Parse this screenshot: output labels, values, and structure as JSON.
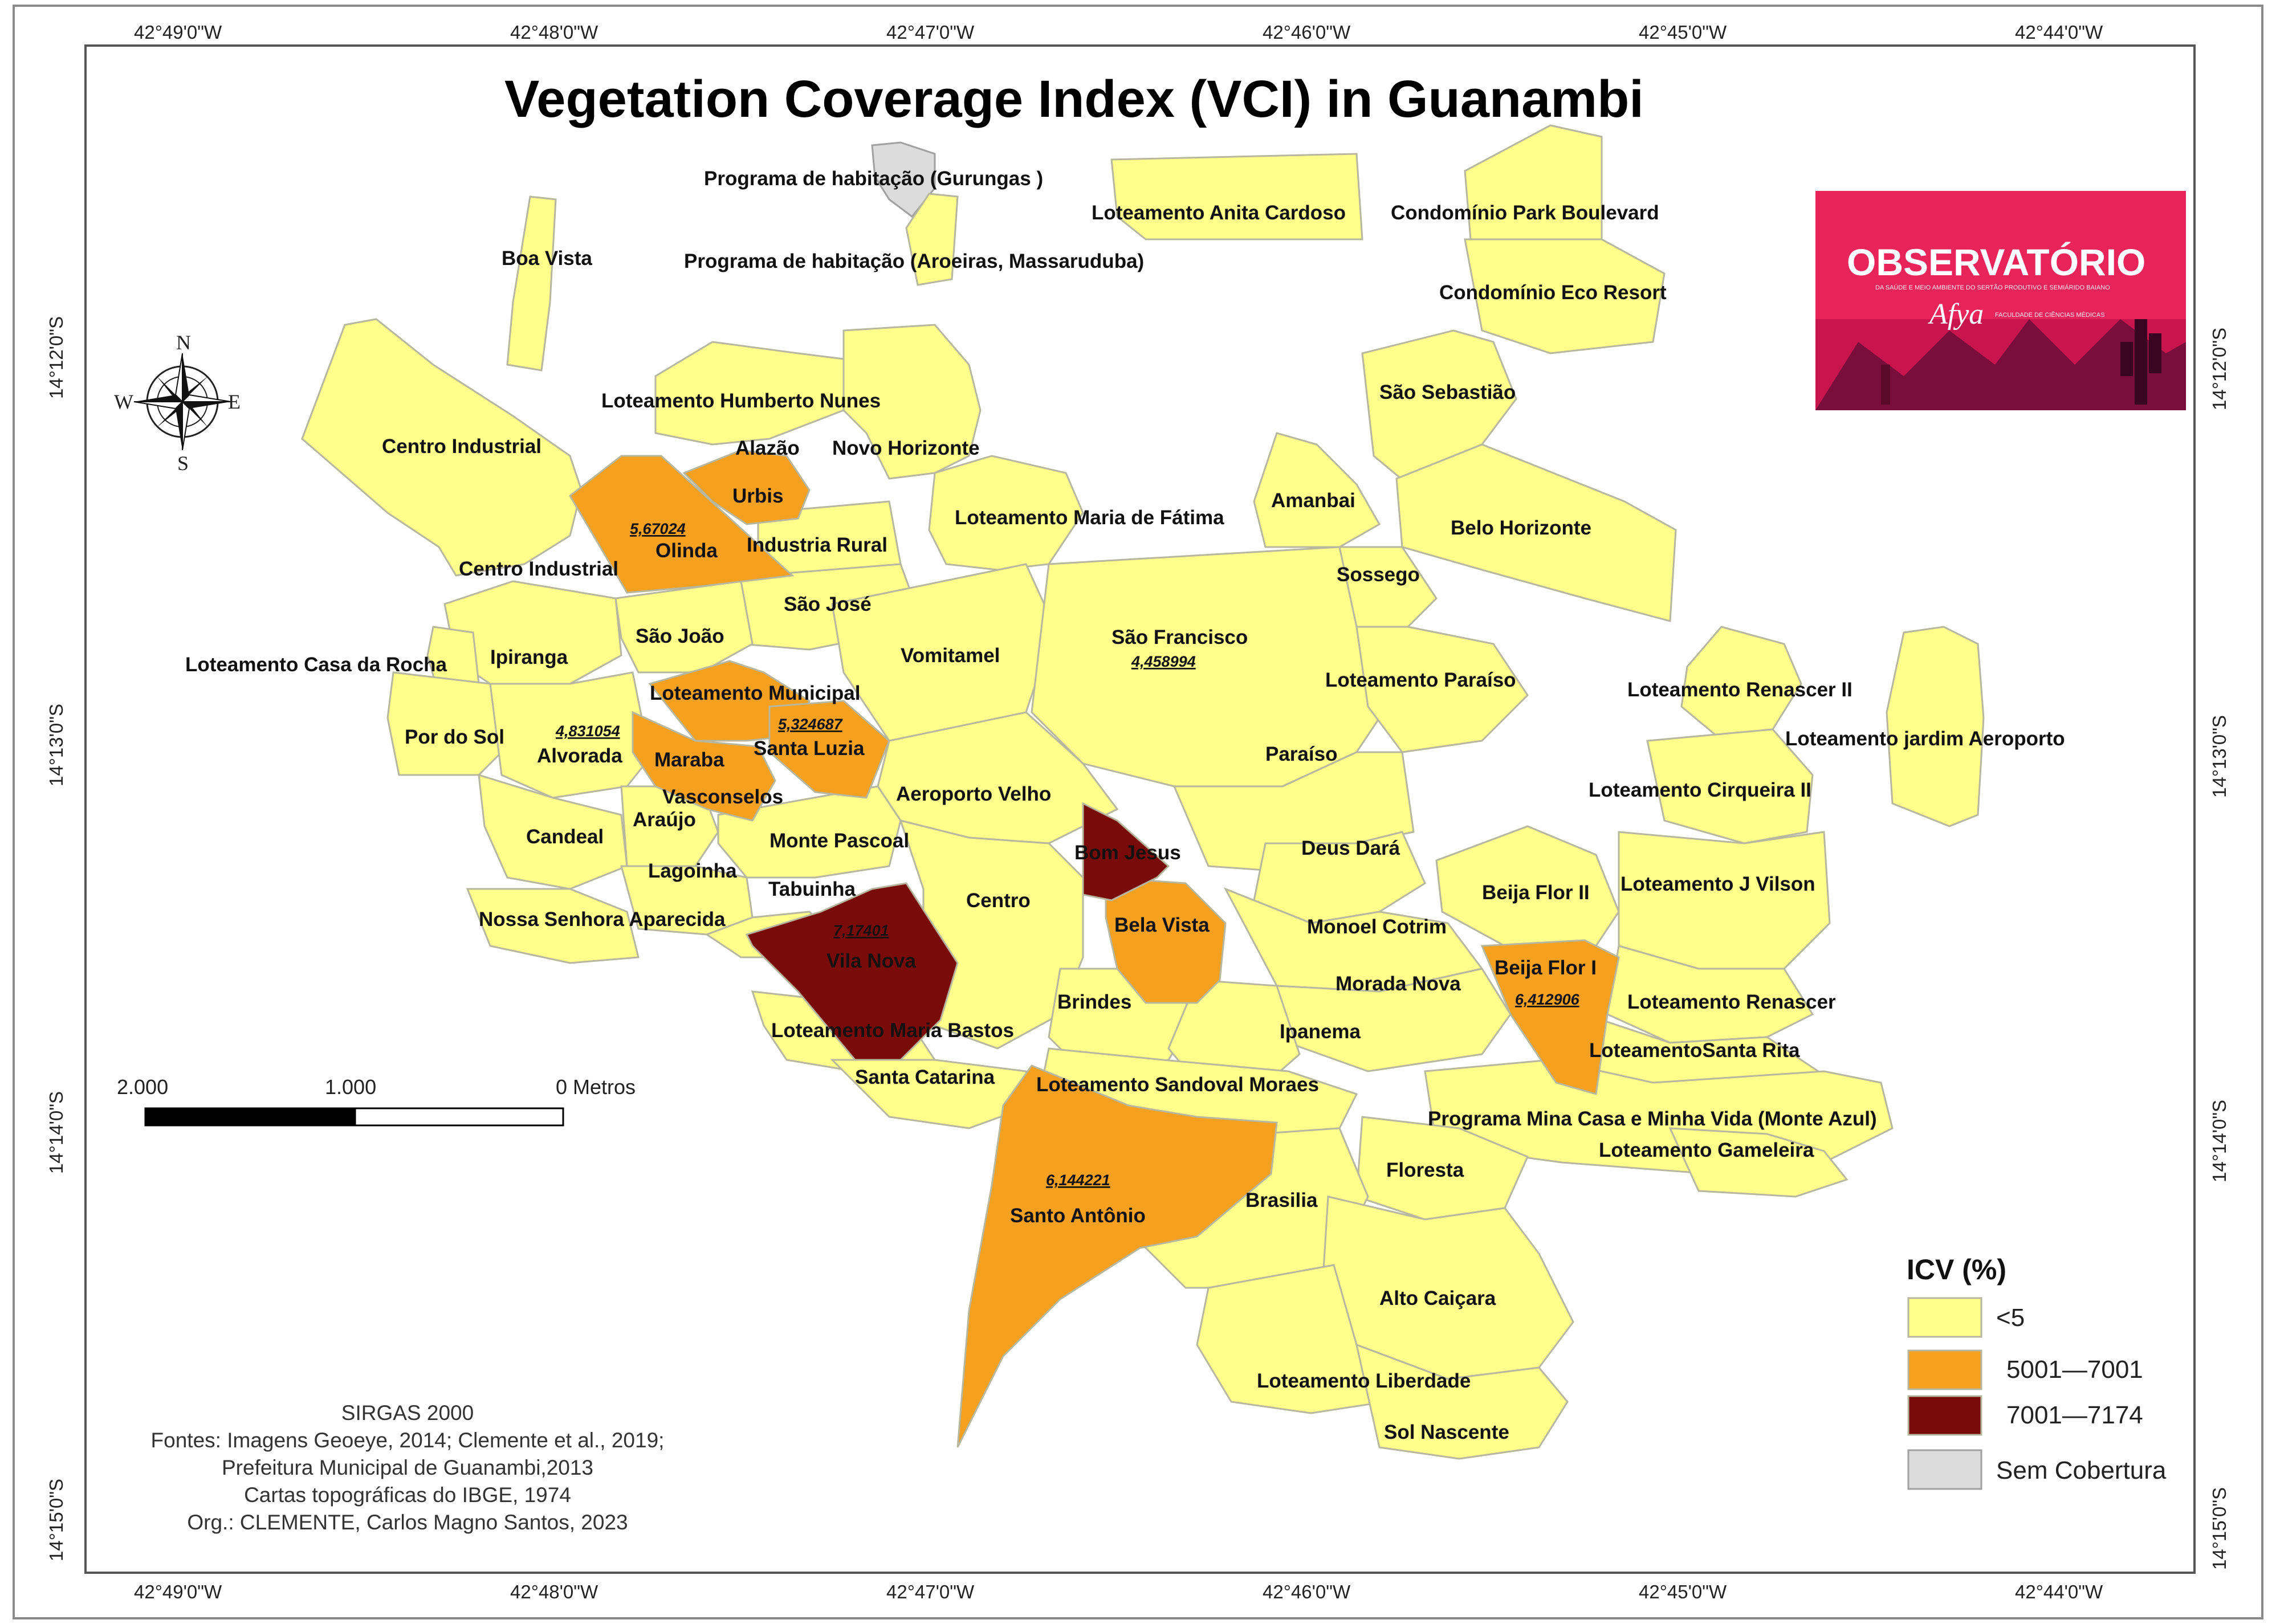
{
  "title": "Vegetation Coverage Index (VCI) in Guanambi",
  "colors": {
    "low": "#ffff8c",
    "mid": "#f5a11f",
    "high": "#7a0b0b",
    "none": "#dcdcdc",
    "border": "#b7b7a0",
    "logo_bg": "#e8245b"
  },
  "coordinates": {
    "longitudes": [
      "42°49'0\"W",
      "42°48'0\"W",
      "42°47'0\"W",
      "42°46'0\"W",
      "42°45'0\"W",
      "42°44'0\"W"
    ],
    "latitudes": [
      "14°12'0\"S",
      "14°13'0\"S",
      "14°14'0\"S",
      "14°15'0\"S"
    ]
  },
  "compass": {
    "n": "N",
    "s": "S",
    "e": "E",
    "w": "W"
  },
  "neighborhood_labels": {
    "gurungas": "Programa de habitação (Gurungas )",
    "aroeiras": "Programa de habitação (Aroeiras, Massaruduba)",
    "anita": "Loteamento Anita Cardoso",
    "park_boulevard": "Condomínio Park Boulevard",
    "eco_resort": "Condomínio Eco Resort",
    "boa_vista": "Boa Vista",
    "sao_sebastiao": "São Sebastião",
    "humberto": "Loteamento Humberto Nunes",
    "centro_industrial_1": "Centro Industrial",
    "alazao": "Alazão",
    "novo_horizonte": "Novo Horizonte",
    "urbis": "Urbis",
    "amanbai": "Amanbai",
    "olinda": "Olinda",
    "industria_rural": "Industria Rural",
    "maria_fatima": "Loteamento Maria de Fátima",
    "belo_horizonte": "Belo Horizonte",
    "centro_industrial_2": "Centro Industrial",
    "sossego": "Sossego",
    "sao_jose": "São José",
    "sao_joao": "São João",
    "sao_francisco": "São Francisco",
    "ipiranga": "Ipiranga",
    "vomitamel": "Vomitamel",
    "casa_rocha": "Loteamento Casa da Rocha",
    "lot_paraiso": "Loteamento Paraíso",
    "lot_municipal": "Loteamento Municipal",
    "renascer_ii": "Loteamento Renascer II",
    "por_do_sol": "Por do Sol",
    "alvorada": "Alvorada",
    "santa_luzia": "Santa Luzia",
    "paraiso": "Paraíso",
    "jardim_aeroporto": "Loteamento jardim Aeroporto",
    "maraba": "Maraba",
    "vasconselos": "Vasconselos",
    "aeroporto_velho": "Aeroporto Velho",
    "cirqueira_ii": "Loteamento Cirqueira II",
    "candeal": "Candeal",
    "araujo": "Araújo",
    "monte_pascoal": "Monte Pascoal",
    "deus_dara": "Deus Dará",
    "bom_jesus": "Bom Jesus",
    "lagoinha": "Lagoinha",
    "tabuinha": "Tabuinha",
    "beija_flor_ii": "Beija Flor II",
    "j_vilson": "Loteamento J Vilson",
    "centro": "Centro",
    "nossa_senhora": "Nossa Senhora Aparecida",
    "bela_vista": "Bela Vista",
    "monoel_cotrim": "Monoel Cotrim",
    "vila_nova": "Vila Nova",
    "beija_flor_i": "Beija Flor I",
    "morada_nova": "Morada Nova",
    "brindes": "Brindes",
    "renascer": "Loteamento Renascer",
    "maria_bastos": "Loteamento Maria Bastos",
    "ipanema": "Ipanema",
    "santa_rita": "LoteamentoSanta Rita",
    "santa_catarina": "Santa Catarina",
    "sandoval": "Loteamento Sandoval Moraes",
    "mina_casa": "Programa Mina Casa e Minha Vida (Monte Azul)",
    "gameleira": "Loteamento Gameleira",
    "floresta": "Floresta",
    "brasilia": "Brasilia",
    "santo_antonio": "Santo Antônio",
    "alto_caicara": "Alto Caiçara",
    "liberdade": "Loteamento Liberdade",
    "sol_nascente": "Sol Nascente"
  },
  "index_values": {
    "olinda": "5,67024",
    "sao_francisco": "4,458994",
    "alvorada": "4,831054",
    "santa_luzia": "5,324687",
    "vila_nova": "7,17401",
    "beija_flor_i": "6,412906",
    "santo_antonio": "6,144221"
  },
  "legend": {
    "title": "ICV (%)",
    "items": [
      {
        "label": "<5",
        "class": "low"
      },
      {
        "label": "5001—7001",
        "class": "mid"
      },
      {
        "label": "7001—7174",
        "class": "high"
      },
      {
        "label": "Sem Cobertura",
        "class": "none"
      }
    ]
  },
  "scale_bar": {
    "left": "2.000",
    "middle": "1.000",
    "right": "0 Metros"
  },
  "credits": [
    "SIRGAS 2000",
    "Fontes: Imagens Geoeye, 2014; Clemente et al., 2019;",
    "Prefeitura Municipal de Guanambi,2013",
    "Cartas topográficas do IBGE, 1974",
    "Org.: CLEMENTE, Carlos Magno Santos, 2023"
  ],
  "logo": {
    "title": "OBSERVATÓRIO",
    "subtitle": "DA SAÚDE E MEIO AMBIENTE DO SERTÃO PRODUTIVO E SEMIÁRIDO BAIANO",
    "brand": "Afya",
    "brand_sub": "FACULDADE DE CIÊNCIAS MÉDICAS"
  }
}
